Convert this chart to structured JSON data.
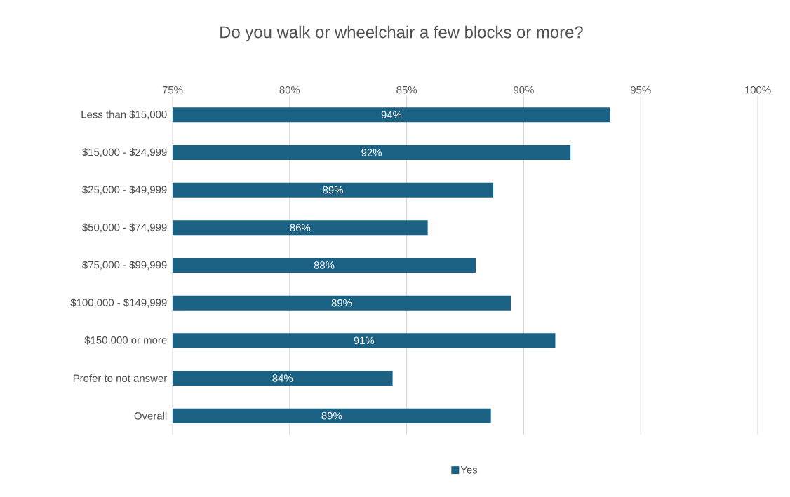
{
  "chart_data": {
    "type": "bar",
    "orientation": "horizontal",
    "title": "Do you walk or wheelchair a few blocks or more?",
    "categories": [
      "Less than $15,000",
      "$15,000 - $24,999",
      "$25,000 - $49,999",
      "$50,000 - $74,999",
      "$75,000 - $99,999",
      "$100,000 - $149,999",
      "$150,000 or more",
      "Prefer to not answer",
      "Overall"
    ],
    "series": [
      {
        "name": "Yes",
        "color": "#1a6183",
        "values": [
          93.7,
          92.0,
          88.7,
          85.9,
          87.95,
          89.45,
          91.35,
          84.4,
          88.6
        ],
        "value_labels": [
          "94%",
          "92%",
          "89%",
          "86%",
          "88%",
          "89%",
          "91%",
          "84%",
          "89%"
        ]
      }
    ],
    "xlim": [
      75,
      100
    ],
    "xticks": [
      {
        "value": 75,
        "label": "75%"
      },
      {
        "value": 80,
        "label": "80%"
      },
      {
        "value": 85,
        "label": "85%"
      },
      {
        "value": 90,
        "label": "90%"
      },
      {
        "value": 95,
        "label": "95%"
      },
      {
        "value": 100,
        "label": "100%"
      }
    ],
    "grid": "x",
    "legend": "bottom"
  }
}
